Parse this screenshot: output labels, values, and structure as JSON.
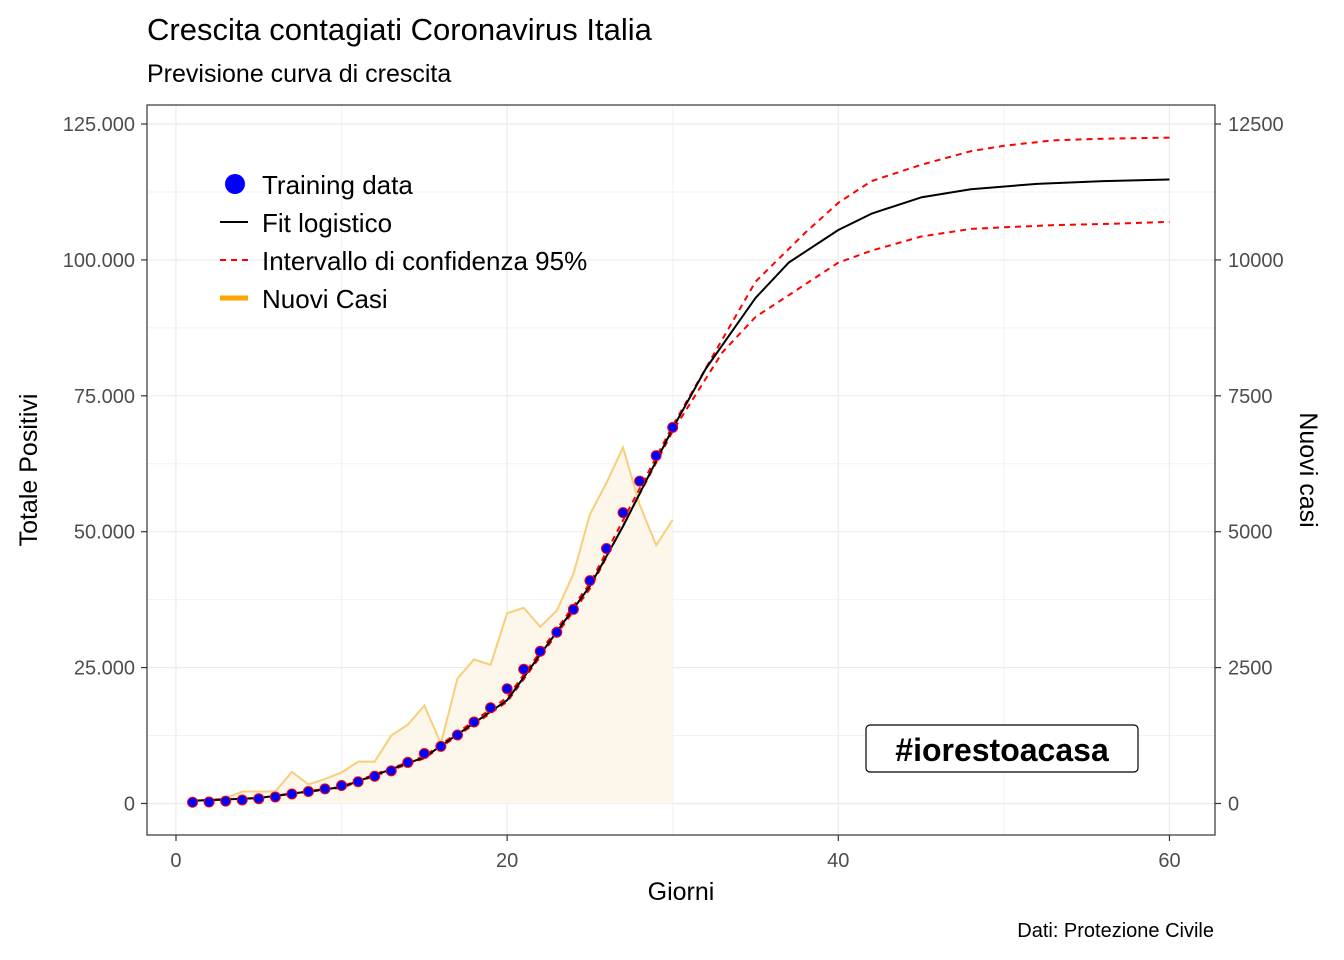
{
  "header": {
    "title": "Crescita contagiati Coronavirus Italia",
    "subtitle": "Previsione curva di crescita"
  },
  "caption": "Dati: Protezione Civile",
  "tag": "#iorestoacasa",
  "chart_data": {
    "type": "line",
    "title": "Crescita contagiati Coronavirus Italia",
    "subtitle": "Previsione curva di crescita",
    "xlabel": "Giorni",
    "ylabel": "Totale Positivi",
    "y2label": "Nuovi casi",
    "xlim": [
      -1.75,
      62.75
    ],
    "ylim": [
      -5800,
      128500
    ],
    "y2lim": [
      -580,
      12850
    ],
    "x_ticks": [
      0,
      20,
      40,
      60
    ],
    "x_tick_labels": [
      "0",
      "20",
      "40",
      "60"
    ],
    "y_ticks": [
      0,
      25000,
      50000,
      75000,
      100000,
      125000
    ],
    "y_tick_labels": [
      "0",
      "25.000",
      "50.000",
      "75.000",
      "100.000",
      "125.000"
    ],
    "y2_ticks": [
      0,
      2500,
      5000,
      7500,
      10000,
      12500
    ],
    "y2_tick_labels": [
      "0",
      "2500",
      "5000",
      "7500",
      "10000",
      "12500"
    ],
    "grid": true,
    "legend_position": "top-left",
    "legend": [
      "Training data",
      "Fit logistico",
      "Intervallo di confidenza 95%",
      "Nuovi Casi"
    ],
    "colors": {
      "training": "#0000ff",
      "training_edge": "#ff0000",
      "fit": "#000000",
      "ci": "#ff0000",
      "nuovi_casi_line": "#f7cf7a",
      "nuovi_casi_area": "#fdf6ea",
      "legend_nuovi": "#ffa500"
    },
    "series": [
      {
        "name": "Training data",
        "kind": "points",
        "x": [
          1,
          2,
          3,
          4,
          5,
          6,
          7,
          8,
          9,
          10,
          11,
          12,
          13,
          14,
          15,
          16,
          17,
          18,
          19,
          20,
          21,
          22,
          23,
          24,
          25,
          26,
          27,
          28,
          29,
          30
        ],
        "values": [
          230,
          280,
          430,
          640,
          880,
          1200,
          1750,
          2200,
          2680,
          3300,
          4000,
          5000,
          6000,
          7550,
          9200,
          10500,
          12600,
          15000,
          17600,
          21100,
          24700,
          28000,
          31500,
          35700,
          41000,
          46900,
          53500,
          59300,
          64000,
          69200
        ]
      },
      {
        "name": "Fit logistico",
        "kind": "line",
        "x": [
          1,
          5,
          10,
          15,
          20,
          25,
          27,
          30,
          32,
          35,
          37,
          40,
          42,
          45,
          48,
          52,
          56,
          60
        ],
        "values": [
          500,
          1000,
          3000,
          8500,
          19000,
          40000,
          51000,
          69000,
          80000,
          93000,
          99500,
          105500,
          108500,
          111500,
          113000,
          114000,
          114500,
          114800
        ]
      },
      {
        "name": "Intervallo di confidenza 95% (upper)",
        "kind": "line",
        "x": [
          1,
          5,
          10,
          15,
          20,
          25,
          30,
          35,
          38,
          40,
          42,
          45,
          48,
          50,
          53,
          56,
          60
        ],
        "values": [
          500,
          1000,
          3100,
          8700,
          19500,
          40500,
          69500,
          96000,
          105000,
          110500,
          114500,
          117500,
          120000,
          121000,
          122000,
          122300,
          122500
        ]
      },
      {
        "name": "Intervallo di confidenza 95% (lower)",
        "kind": "line",
        "x": [
          1,
          5,
          10,
          15,
          20,
          25,
          30,
          33,
          35,
          38,
          40,
          42,
          45,
          48,
          50,
          53,
          56,
          60
        ],
        "values": [
          500,
          1000,
          2900,
          8300,
          18700,
          39500,
          68500,
          83000,
          89500,
          95500,
          99500,
          101700,
          104300,
          105700,
          106000,
          106400,
          106600,
          107000
        ]
      },
      {
        "name": "Nuovi Casi",
        "kind": "area",
        "axis": "secondary",
        "x": [
          1,
          2,
          3,
          4,
          5,
          6,
          7,
          8,
          9,
          10,
          11,
          12,
          13,
          14,
          15,
          16,
          17,
          18,
          19,
          20,
          21,
          22,
          23,
          24,
          25,
          26,
          27,
          28,
          29,
          30
        ],
        "values": [
          60,
          60,
          100,
          220,
          220,
          220,
          580,
          350,
          450,
          570,
          770,
          770,
          1250,
          1450,
          1800,
          1100,
          2300,
          2650,
          2550,
          3500,
          3600,
          3250,
          3550,
          4220,
          5320,
          5900,
          6550,
          5500,
          4750,
          5220
        ]
      }
    ]
  }
}
